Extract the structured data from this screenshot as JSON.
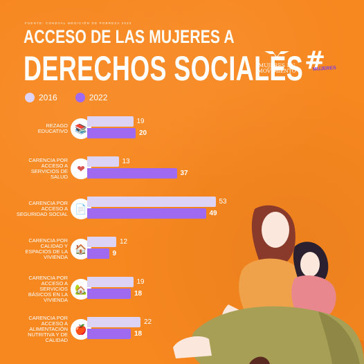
{
  "source": "FUENTE: CONEVAL MEDICIÓN DE POBREZA 2022",
  "title_line1": "ACCESO DE LAS MUJERES A",
  "title_line2": "DERECHOS SOCIALES",
  "logo": {
    "name_line1": "MUJERES EN",
    "name_line2": "MOVIMIENTO",
    "hashtag_symbol": "#",
    "hashtag_text": "MUJERES"
  },
  "colors": {
    "background": "#f7871f",
    "series_2016": "#ddd3f4",
    "series_2022": "#a06af0"
  },
  "chart_data": {
    "type": "bar",
    "orientation": "horizontal",
    "title": "ACCESO DE LAS MUJERES A DERECHOS SOCIALES",
    "categories": [
      "REZAGO EDUCATIVO",
      "CARENCIA POR ACCESO A SERVICIOS DE SALUD",
      "CARENCIA POR ACCESO A SEGURIDAD SOCIAL",
      "CARENCIA POR CALIDAD Y ESPACIOS DE LA VIVIENDA",
      "CARENCIA POR ACCESO A SERVICIOS BÁSICOS EN LA VIVIENDA",
      "CARENCIA POR ACCESO A ALIMENTACIÓN NUTRITIVA Y DE CALIDAD"
    ],
    "category_icons": [
      "books-icon",
      "heart-rate-icon",
      "document-icon",
      "house-icon",
      "house-services-icon",
      "food-basket-icon"
    ],
    "series": [
      {
        "name": "2016",
        "values": [
          19,
          13,
          53,
          12,
          19,
          22
        ]
      },
      {
        "name": "2022",
        "values": [
          20,
          37,
          49,
          9,
          18,
          18
        ]
      }
    ],
    "legend_position": "top-left",
    "grid": false,
    "xlim": [
      0,
      55
    ]
  }
}
